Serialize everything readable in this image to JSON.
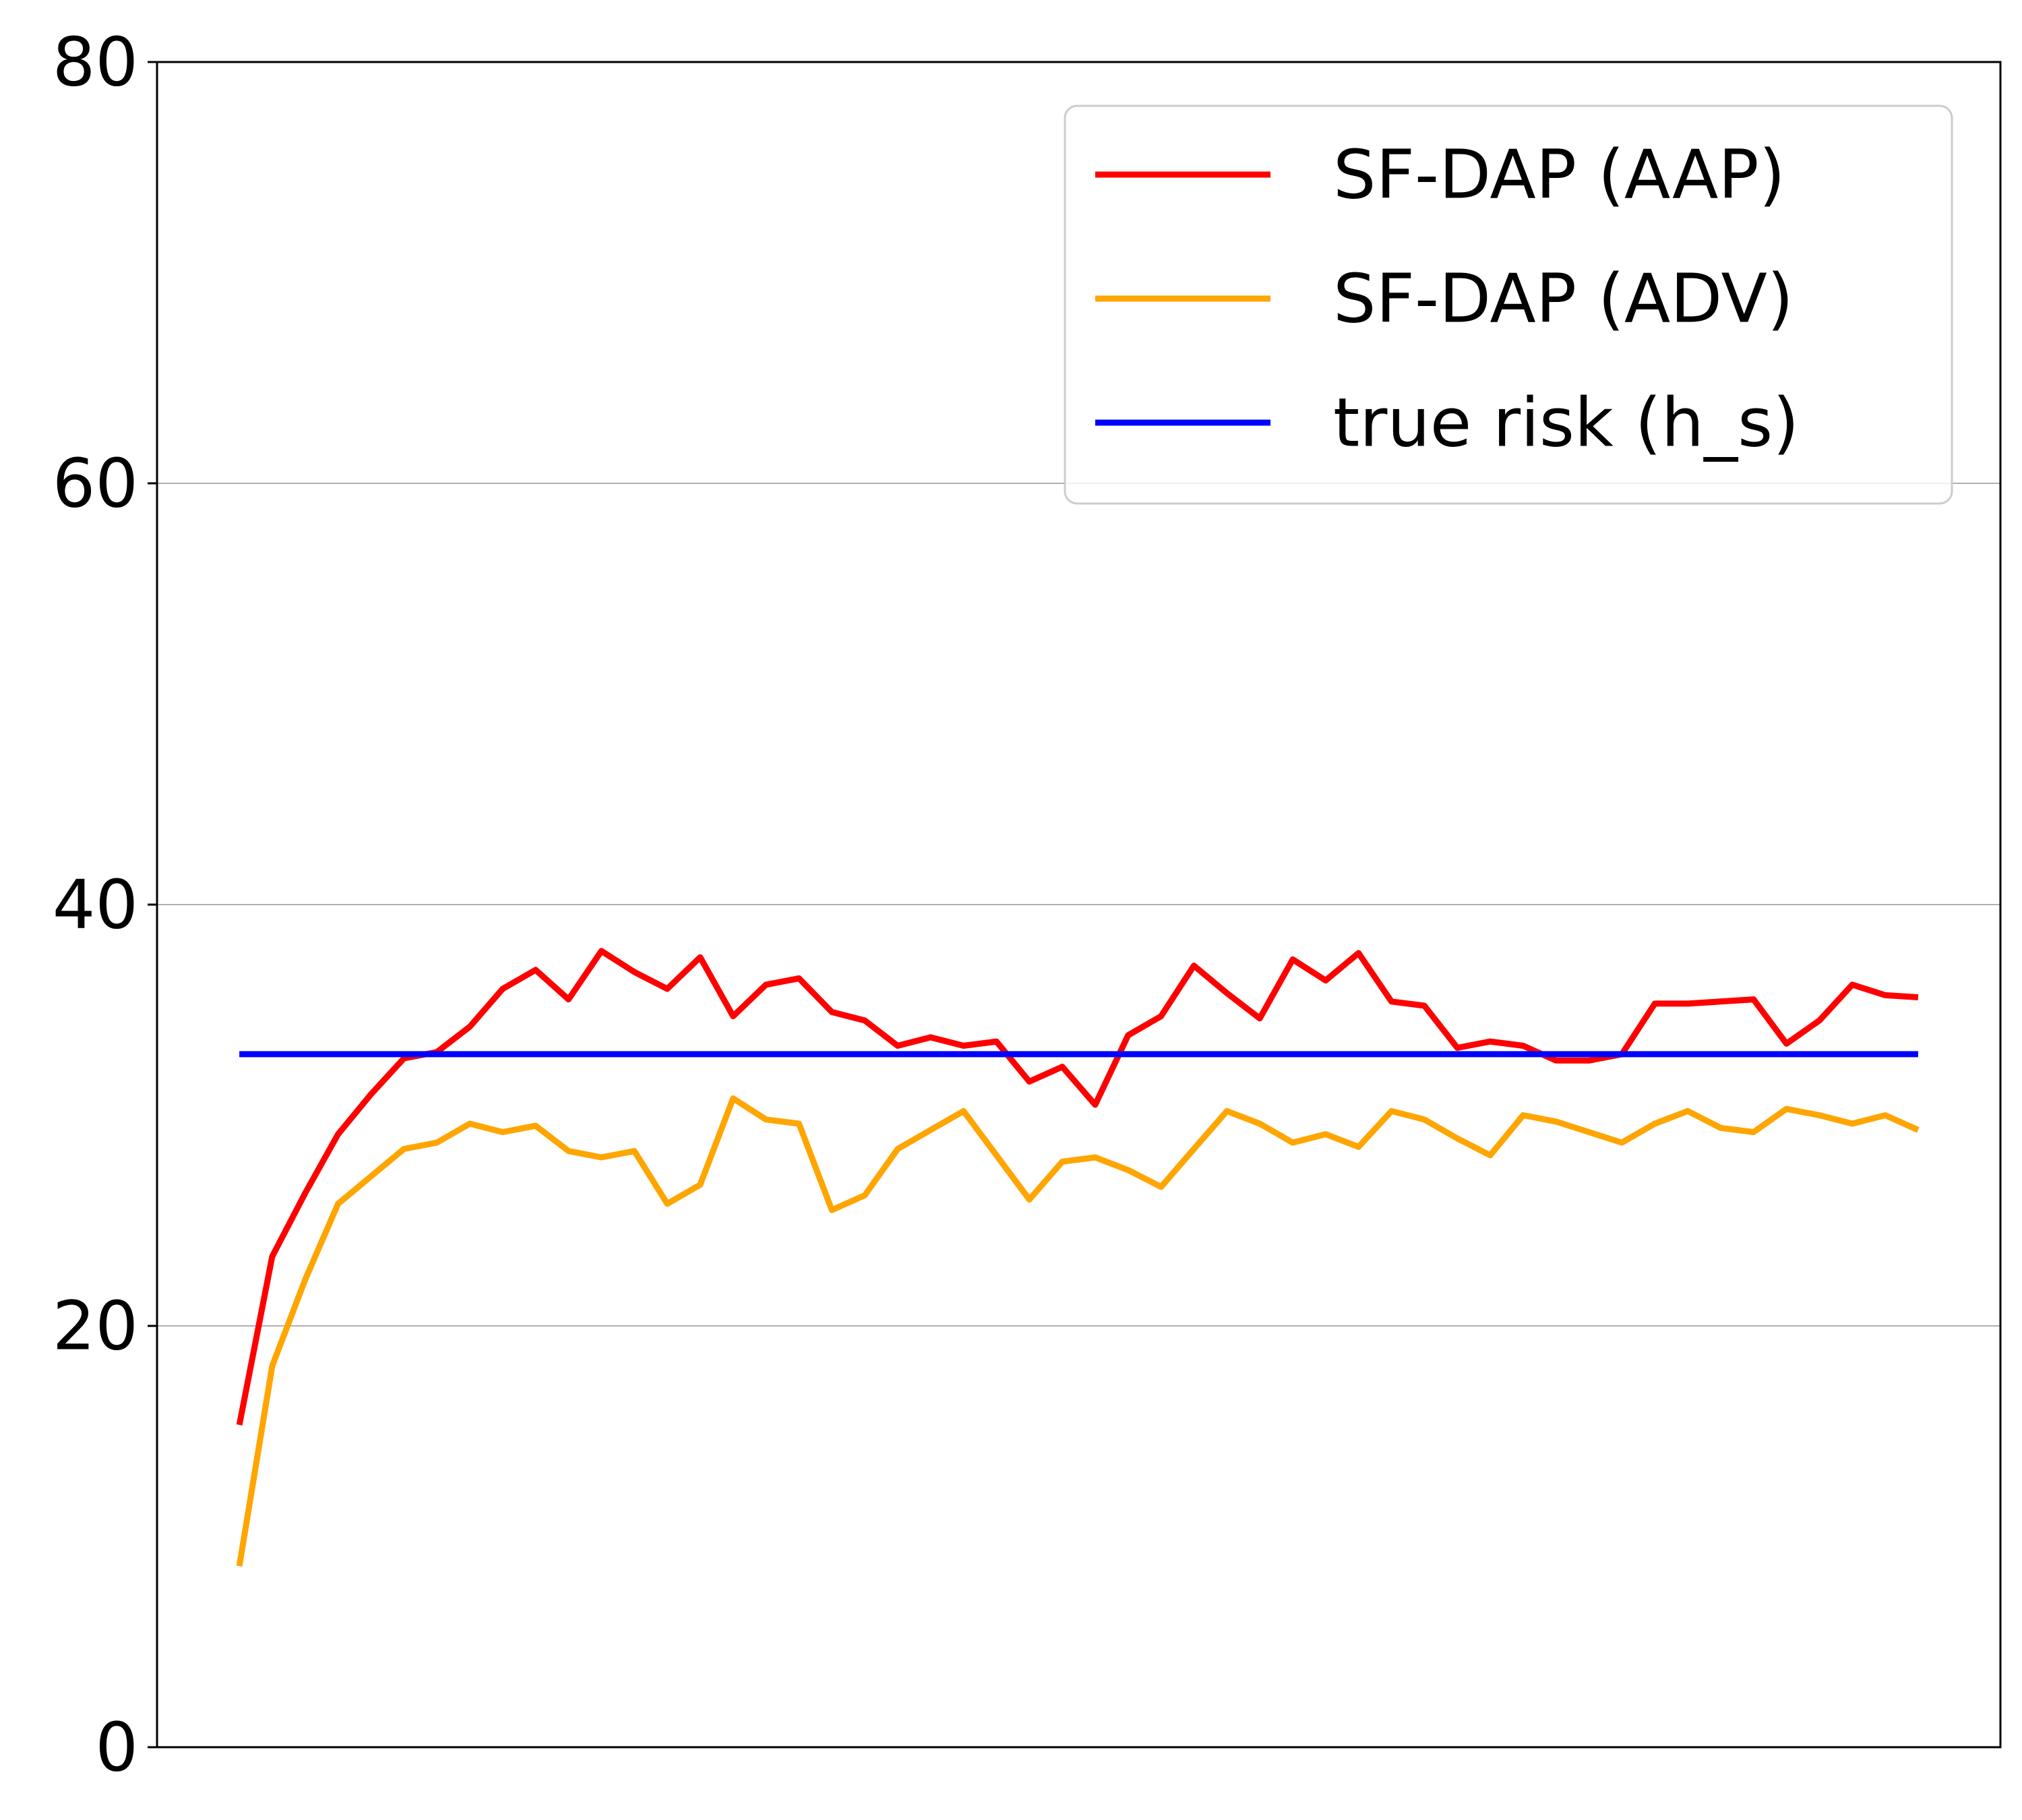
{
  "chart_data": {
    "type": "line",
    "title": "",
    "xlabel": "",
    "ylabel": "",
    "ylim": [
      0,
      80
    ],
    "yticks": [
      0,
      20,
      40,
      60,
      80
    ],
    "xlim": [
      -2.5,
      53.5
    ],
    "x_ticks_visible": false,
    "grid": "horizontal",
    "legend_position": "top-right",
    "x": [
      0,
      1,
      2,
      3,
      4,
      5,
      6,
      7,
      8,
      9,
      10,
      11,
      12,
      13,
      14,
      15,
      16,
      17,
      18,
      19,
      20,
      21,
      22,
      23,
      24,
      25,
      26,
      27,
      28,
      29,
      30,
      31,
      32,
      33,
      34,
      35,
      36,
      37,
      38,
      39,
      40,
      41,
      42,
      43,
      44,
      45,
      46,
      47,
      48,
      49,
      50,
      51
    ],
    "series": [
      {
        "name": "SF-DAP (AAP)",
        "color": "#ff0000",
        "values": [
          15.3,
          23.3,
          26.3,
          29.1,
          31.0,
          32.7,
          33.0,
          34.2,
          36.0,
          36.9,
          35.5,
          37.8,
          36.8,
          36.0,
          37.5,
          34.7,
          36.2,
          36.5,
          34.9,
          34.5,
          33.3,
          33.7,
          33.3,
          33.5,
          31.6,
          32.3,
          30.5,
          33.8,
          34.7,
          37.1,
          35.8,
          34.6,
          37.4,
          36.4,
          37.7,
          35.4,
          35.2,
          33.2,
          33.5,
          33.3,
          32.6,
          32.6,
          32.9,
          35.3,
          35.3,
          35.4,
          35.5,
          33.4,
          34.5,
          36.2,
          35.7,
          35.6
        ]
      },
      {
        "name": "SF-DAP (ADV)",
        "color": "#ffa500",
        "values": [
          8.6,
          18.1,
          22.2,
          25.8,
          27.1,
          28.4,
          28.7,
          29.6,
          29.2,
          29.5,
          28.3,
          28.0,
          28.3,
          25.8,
          26.7,
          30.8,
          29.8,
          29.6,
          25.5,
          26.2,
          28.4,
          29.3,
          30.2,
          28.1,
          26.0,
          27.8,
          28.0,
          27.4,
          26.6,
          28.4,
          30.2,
          29.6,
          28.7,
          29.1,
          28.5,
          30.2,
          29.8,
          28.9,
          28.1,
          30.0,
          29.7,
          29.2,
          28.7,
          29.6,
          30.2,
          29.4,
          29.2,
          30.3,
          30.0,
          29.6,
          30.0,
          29.3
        ]
      },
      {
        "name": "true risk (h_s)",
        "color": "#0000ff",
        "values": [
          32.9,
          32.9,
          32.9,
          32.9,
          32.9,
          32.9,
          32.9,
          32.9,
          32.9,
          32.9,
          32.9,
          32.9,
          32.9,
          32.9,
          32.9,
          32.9,
          32.9,
          32.9,
          32.9,
          32.9,
          32.9,
          32.9,
          32.9,
          32.9,
          32.9,
          32.9,
          32.9,
          32.9,
          32.9,
          32.9,
          32.9,
          32.9,
          32.9,
          32.9,
          32.9,
          32.9,
          32.9,
          32.9,
          32.9,
          32.9,
          32.9,
          32.9,
          32.9,
          32.9,
          32.9,
          32.9,
          32.9,
          32.9,
          32.9,
          32.9,
          32.9,
          32.9
        ]
      }
    ]
  }
}
